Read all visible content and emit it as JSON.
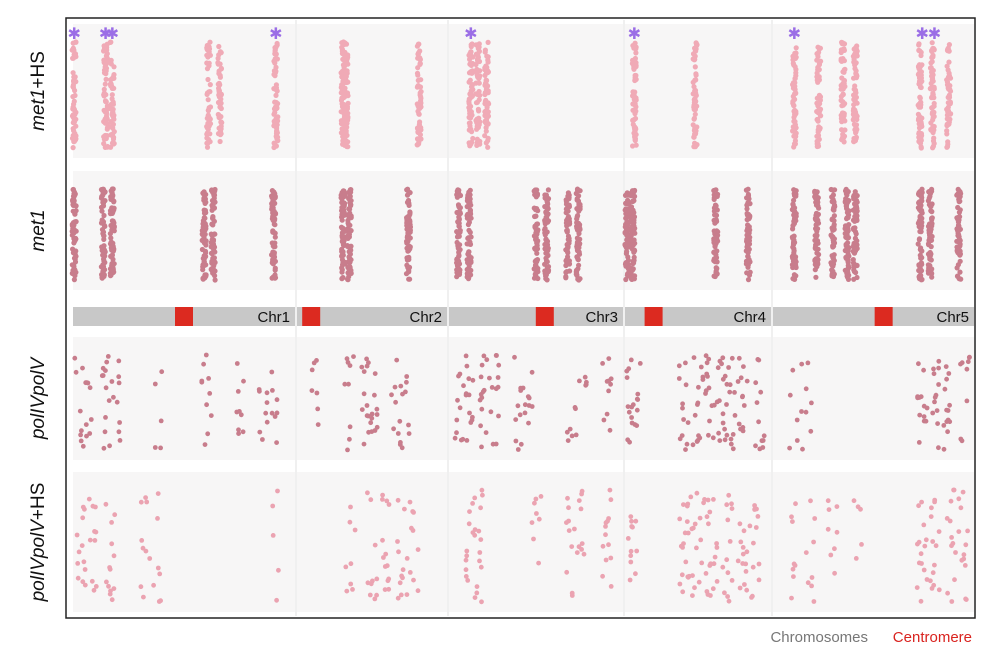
{
  "chart_data": {
    "type": "scatter",
    "title": "",
    "legend": {
      "placement": "bottom-right",
      "entries": [
        {
          "label": "Chromosomes",
          "color": "#777777"
        },
        {
          "label": "Centromere",
          "color": "#d9231f"
        }
      ]
    },
    "colors": {
      "panel_bg": "#f7f6f6",
      "chromosome_bar": "#c8c8c8",
      "centromere": "#dc2a20",
      "met1": "#c87d8c",
      "met1_hs": "#f0aab6",
      "poliv": "#c87d8c",
      "poliv_hs": "#eba3b1",
      "star": "#9b6ee6"
    },
    "rows": [
      {
        "label_parts": [
          {
            "text": "met1",
            "italic": true
          },
          {
            "text": "+HS",
            "italic": false
          }
        ],
        "style": "dense",
        "color": "#f0aab6"
      },
      {
        "label_parts": [
          {
            "text": "met1",
            "italic": true
          }
        ],
        "style": "dense",
        "color": "#c87d8c"
      },
      {
        "label_parts": [
          {
            "text": "polIVpolV",
            "italic": true
          }
        ],
        "style": "scatter",
        "color": "#c87d8c"
      },
      {
        "label_parts": [
          {
            "text": "polIVpolV",
            "italic": true
          },
          {
            "text": "+HS",
            "italic": false
          }
        ],
        "style": "scatter",
        "color": "#eba3b1"
      }
    ],
    "chromosomes": [
      {
        "name": "Chr1",
        "centromere": 0.5,
        "tracks": [
          [
            {
              "x": 0.01,
              "d": 0.85
            },
            {
              "x": 0.15,
              "d": 0.9
            },
            {
              "x": 0.18,
              "d": 0.7
            },
            {
              "x": 0.61,
              "d": 0.7
            },
            {
              "x": 0.66,
              "d": 0.7
            },
            {
              "x": 0.91,
              "d": 0.9
            }
          ],
          [
            {
              "x": 0.01,
              "d": 0.95
            },
            {
              "x": 0.14,
              "d": 0.9
            },
            {
              "x": 0.18,
              "d": 0.95
            },
            {
              "x": 0.59,
              "d": 0.95
            },
            {
              "x": 0.63,
              "d": 0.95
            },
            {
              "x": 0.9,
              "d": 0.95
            }
          ],
          [
            {
              "x": 0.03,
              "d": 0.3
            },
            {
              "x": 0.08,
              "d": 0.3
            },
            {
              "x": 0.15,
              "d": 0.45
            },
            {
              "x": 0.2,
              "d": 0.35
            },
            {
              "x": 0.38,
              "d": 0.2
            },
            {
              "x": 0.6,
              "d": 0.4
            },
            {
              "x": 0.75,
              "d": 0.35
            },
            {
              "x": 0.85,
              "d": 0.3
            },
            {
              "x": 0.9,
              "d": 0.25
            }
          ],
          [
            {
              "x": 0.04,
              "d": 0.45
            },
            {
              "x": 0.09,
              "d": 0.4
            },
            {
              "x": 0.17,
              "d": 0.5
            },
            {
              "x": 0.33,
              "d": 0.35
            },
            {
              "x": 0.38,
              "d": 0.25
            },
            {
              "x": 0.9,
              "d": 0.2
            }
          ]
        ],
        "stars": [
          0.01,
          0.15,
          0.18,
          0.91
        ]
      },
      {
        "name": "Chr2",
        "centromere": 0.1,
        "tracks": [
          [
            {
              "x": 0.31,
              "d": 1.0
            },
            {
              "x": 0.33,
              "d": 1.0
            },
            {
              "x": 0.81,
              "d": 0.8
            }
          ],
          [
            {
              "x": 0.31,
              "d": 1.0
            },
            {
              "x": 0.35,
              "d": 1.0
            },
            {
              "x": 0.74,
              "d": 0.9
            }
          ],
          [
            {
              "x": 0.12,
              "d": 0.25
            },
            {
              "x": 0.35,
              "d": 0.35
            },
            {
              "x": 0.46,
              "d": 0.45
            },
            {
              "x": 0.52,
              "d": 0.4
            },
            {
              "x": 0.66,
              "d": 0.35
            },
            {
              "x": 0.72,
              "d": 0.3
            }
          ],
          [
            {
              "x": 0.36,
              "d": 0.3
            },
            {
              "x": 0.5,
              "d": 0.4
            },
            {
              "x": 0.6,
              "d": 0.5
            },
            {
              "x": 0.7,
              "d": 0.45
            },
            {
              "x": 0.78,
              "d": 0.35
            }
          ]
        ],
        "stars": []
      },
      {
        "name": "Chr3",
        "centromere": 0.55,
        "tracks": [
          [
            {
              "x": 0.13,
              "d": 0.85
            },
            {
              "x": 0.17,
              "d": 0.7
            },
            {
              "x": 0.22,
              "d": 0.85
            }
          ],
          [
            {
              "x": 0.06,
              "d": 0.9
            },
            {
              "x": 0.12,
              "d": 0.9
            },
            {
              "x": 0.5,
              "d": 0.9
            },
            {
              "x": 0.56,
              "d": 0.85
            },
            {
              "x": 0.68,
              "d": 0.9
            },
            {
              "x": 0.74,
              "d": 0.9
            }
          ],
          [
            {
              "x": 0.06,
              "d": 0.4
            },
            {
              "x": 0.13,
              "d": 0.45
            },
            {
              "x": 0.2,
              "d": 0.5
            },
            {
              "x": 0.26,
              "d": 0.45
            },
            {
              "x": 0.4,
              "d": 0.4
            },
            {
              "x": 0.45,
              "d": 0.3
            },
            {
              "x": 0.7,
              "d": 0.25
            },
            {
              "x": 0.76,
              "d": 0.2
            },
            {
              "x": 0.9,
              "d": 0.4
            }
          ],
          [
            {
              "x": 0.13,
              "d": 0.5
            },
            {
              "x": 0.18,
              "d": 0.45
            },
            {
              "x": 0.5,
              "d": 0.3
            },
            {
              "x": 0.7,
              "d": 0.4
            },
            {
              "x": 0.76,
              "d": 0.35
            },
            {
              "x": 0.9,
              "d": 0.5
            }
          ]
        ],
        "stars": [
          0.13
        ]
      },
      {
        "name": "Chr4",
        "centromere": 0.2,
        "tracks": [
          [
            {
              "x": 0.07,
              "d": 0.85
            },
            {
              "x": 0.48,
              "d": 0.85
            }
          ],
          [
            {
              "x": 0.02,
              "d": 0.9
            },
            {
              "x": 0.06,
              "d": 0.95
            },
            {
              "x": 0.62,
              "d": 0.85
            },
            {
              "x": 0.84,
              "d": 0.85
            }
          ],
          [
            {
              "x": 0.03,
              "d": 0.4
            },
            {
              "x": 0.08,
              "d": 0.35
            },
            {
              "x": 0.4,
              "d": 0.45
            },
            {
              "x": 0.5,
              "d": 0.5
            },
            {
              "x": 0.58,
              "d": 0.5
            },
            {
              "x": 0.66,
              "d": 0.55
            },
            {
              "x": 0.72,
              "d": 0.5
            },
            {
              "x": 0.8,
              "d": 0.45
            },
            {
              "x": 0.92,
              "d": 0.45
            }
          ],
          [
            {
              "x": 0.06,
              "d": 0.45
            },
            {
              "x": 0.4,
              "d": 0.5
            },
            {
              "x": 0.46,
              "d": 0.5
            },
            {
              "x": 0.54,
              "d": 0.45
            },
            {
              "x": 0.6,
              "d": 0.45
            },
            {
              "x": 0.7,
              "d": 0.5
            },
            {
              "x": 0.8,
              "d": 0.5
            },
            {
              "x": 0.88,
              "d": 0.45
            }
          ]
        ],
        "stars": [
          0.07
        ]
      },
      {
        "name": "Chr5",
        "centromere": 0.55,
        "tracks": [
          [
            {
              "x": 0.11,
              "d": 0.85
            },
            {
              "x": 0.23,
              "d": 0.85
            },
            {
              "x": 0.35,
              "d": 0.85
            },
            {
              "x": 0.41,
              "d": 0.9
            },
            {
              "x": 0.73,
              "d": 0.95
            },
            {
              "x": 0.79,
              "d": 0.9
            },
            {
              "x": 0.87,
              "d": 0.8
            }
          ],
          [
            {
              "x": 0.11,
              "d": 0.9
            },
            {
              "x": 0.22,
              "d": 0.9
            },
            {
              "x": 0.3,
              "d": 0.9
            },
            {
              "x": 0.37,
              "d": 0.95
            },
            {
              "x": 0.41,
              "d": 0.95
            },
            {
              "x": 0.73,
              "d": 0.95
            },
            {
              "x": 0.78,
              "d": 0.95
            },
            {
              "x": 0.92,
              "d": 0.9
            }
          ],
          [
            {
              "x": 0.11,
              "d": 0.2
            },
            {
              "x": 0.17,
              "d": 0.3
            },
            {
              "x": 0.74,
              "d": 0.5
            },
            {
              "x": 0.8,
              "d": 0.45
            },
            {
              "x": 0.86,
              "d": 0.5
            },
            {
              "x": 0.95,
              "d": 0.35
            }
          ],
          [
            {
              "x": 0.11,
              "d": 0.3
            },
            {
              "x": 0.19,
              "d": 0.3
            },
            {
              "x": 0.3,
              "d": 0.3
            },
            {
              "x": 0.42,
              "d": 0.2
            },
            {
              "x": 0.74,
              "d": 0.55
            },
            {
              "x": 0.8,
              "d": 0.5
            },
            {
              "x": 0.88,
              "d": 0.45
            },
            {
              "x": 0.94,
              "d": 0.45
            }
          ]
        ],
        "stars": [
          0.11,
          0.74,
          0.8
        ]
      }
    ]
  }
}
